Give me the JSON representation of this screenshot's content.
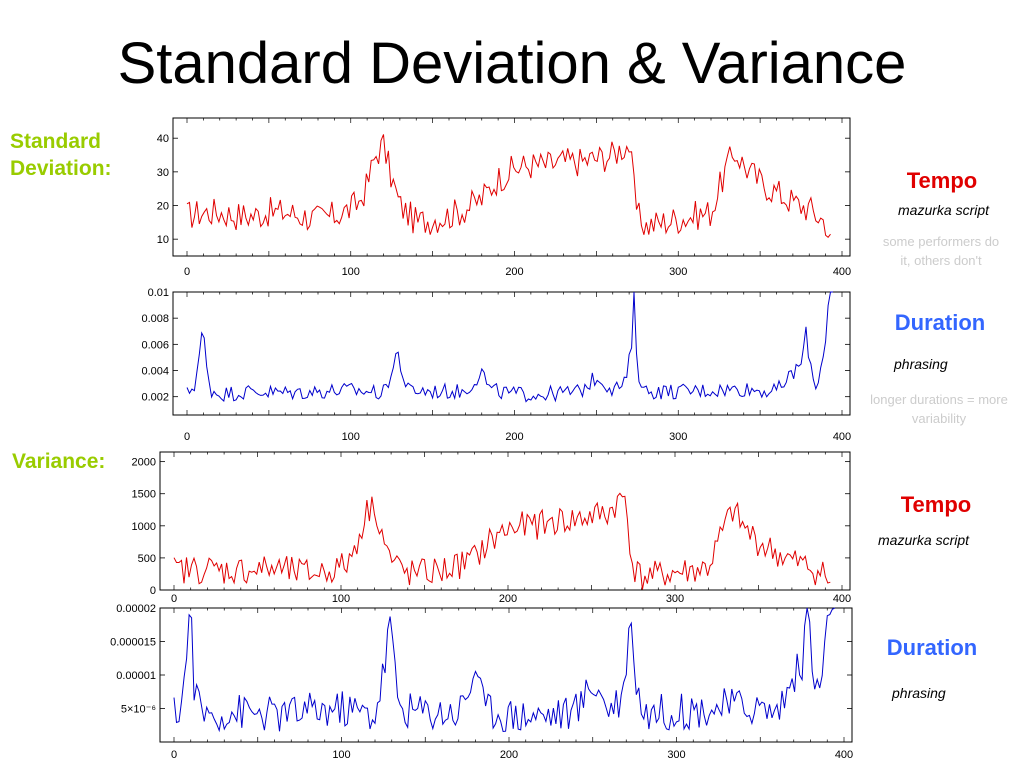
{
  "title": "Standard Deviation & Variance",
  "labels": {
    "std": "Standard\nDeviation:",
    "var": "Variance:"
  },
  "colors": {
    "tempo": "#e00000",
    "duration": "#0000cc",
    "section_label": "#99cc00",
    "note": "#cccccc"
  },
  "annotations": [
    {
      "title": "Tempo",
      "subtitle": "mazurka script",
      "note": "some performers do it, others don't"
    },
    {
      "title": "Duration",
      "subtitle": "phrasing",
      "note": "longer durations = more variability"
    },
    {
      "title": "Tempo",
      "subtitle": "mazurka script",
      "note": ""
    },
    {
      "title": "Duration",
      "subtitle": "phrasing",
      "note": ""
    }
  ],
  "chart_data": [
    {
      "type": "line",
      "title": "",
      "xlabel": "",
      "ylabel": "",
      "grid": false,
      "xlim": [
        0,
        400
      ],
      "ylim": [
        5,
        46
      ],
      "x_ticks": [
        0,
        100,
        200,
        300,
        400
      ],
      "y_ticks": [
        10,
        20,
        30,
        40
      ],
      "y_tick_labels": [
        "10",
        "20",
        "30",
        "40"
      ],
      "series": [
        {
          "color": "#e00000",
          "x": [
            0,
            10,
            20,
            30,
            40,
            50,
            60,
            70,
            80,
            90,
            100,
            105,
            110,
            115,
            120,
            125,
            130,
            140,
            150,
            160,
            170,
            180,
            190,
            200,
            210,
            220,
            230,
            240,
            250,
            260,
            265,
            270,
            275,
            280,
            290,
            300,
            310,
            320,
            330,
            335,
            340,
            350,
            360,
            370,
            380,
            390,
            393
          ],
          "y": [
            17,
            18,
            18,
            17,
            17,
            18,
            18,
            17,
            16,
            17,
            19,
            21,
            26,
            35,
            38,
            28,
            20,
            15,
            16,
            17,
            19,
            22,
            28,
            31,
            32,
            32,
            33,
            33,
            34,
            35,
            37,
            38,
            17,
            14,
            15,
            16,
            17,
            18,
            32,
            36,
            32,
            27,
            24,
            21,
            19,
            15,
            9
          ],
          "noise": 4.5
        }
      ]
    },
    {
      "type": "line",
      "title": "",
      "xlabel": "",
      "ylabel": "",
      "grid": false,
      "xlim": [
        0,
        400
      ],
      "ylim": [
        0.0006,
        0.01
      ],
      "x_ticks": [
        0,
        100,
        200,
        300,
        400
      ],
      "y_ticks": [
        0.002,
        0.004,
        0.006,
        0.008,
        0.01
      ],
      "y_tick_labels": [
        "0.002",
        "0.004",
        "0.006",
        "0.008",
        "0.01"
      ],
      "series": [
        {
          "color": "#0000cc",
          "x": [
            0,
            5,
            9,
            10,
            12,
            15,
            20,
            40,
            60,
            80,
            100,
            120,
            127,
            128,
            132,
            135,
            150,
            170,
            178,
            180,
            185,
            200,
            220,
            240,
            250,
            260,
            268,
            272,
            273,
            275,
            280,
            300,
            320,
            340,
            360,
            375,
            378,
            382,
            385,
            390,
            392,
            395
          ],
          "y": [
            0.0022,
            0.003,
            0.0065,
            0.0072,
            0.004,
            0.0025,
            0.0022,
            0.0024,
            0.0023,
            0.0024,
            0.0025,
            0.0023,
            0.0045,
            0.0058,
            0.0035,
            0.0025,
            0.0024,
            0.0024,
            0.0036,
            0.004,
            0.0025,
            0.0022,
            0.0022,
            0.0024,
            0.0035,
            0.0026,
            0.003,
            0.0065,
            0.0095,
            0.004,
            0.0024,
            0.0024,
            0.0025,
            0.0026,
            0.0024,
            0.0045,
            0.0068,
            0.0035,
            0.0028,
            0.0065,
            0.01,
            0.01
          ],
          "noise": 0.0006
        }
      ]
    },
    {
      "type": "line",
      "title": "",
      "xlabel": "",
      "ylabel": "",
      "grid": false,
      "xlim": [
        0,
        400
      ],
      "ylim": [
        0,
        2150
      ],
      "x_ticks": [
        0,
        100,
        200,
        300,
        400
      ],
      "y_ticks": [
        0,
        500,
        1000,
        1500,
        2000
      ],
      "y_tick_labels": [
        "0",
        "500",
        "1000",
        "1500",
        "2000"
      ],
      "series": [
        {
          "color": "#e00000",
          "x": [
            0,
            10,
            20,
            30,
            40,
            50,
            60,
            70,
            80,
            90,
            100,
            105,
            110,
            115,
            120,
            125,
            130,
            140,
            150,
            160,
            170,
            180,
            190,
            200,
            210,
            220,
            230,
            240,
            250,
            260,
            265,
            270,
            275,
            280,
            290,
            300,
            310,
            320,
            330,
            335,
            340,
            350,
            360,
            370,
            380,
            390,
            393
          ],
          "y": [
            300,
            320,
            330,
            300,
            310,
            320,
            330,
            290,
            260,
            290,
            360,
            450,
            800,
            1200,
            1350,
            850,
            450,
            250,
            270,
            300,
            380,
            500,
            780,
            950,
            1000,
            1020,
            1080,
            1090,
            1150,
            1200,
            1350,
            1450,
            330,
            200,
            230,
            270,
            300,
            350,
            1000,
            1250,
            1000,
            740,
            580,
            450,
            360,
            230,
            90
          ],
          "noise": 230
        }
      ]
    },
    {
      "type": "line",
      "title": "",
      "xlabel": "",
      "ylabel": "",
      "grid": false,
      "xlim": [
        0,
        400
      ],
      "ylim": [
        0,
        2e-05
      ],
      "x_ticks": [
        0,
        100,
        200,
        300,
        400
      ],
      "y_ticks": [
        5e-06,
        1e-05,
        1.5e-05,
        2e-05
      ],
      "y_tick_labels": [
        "5×10⁻⁶",
        "0.00001",
        "0.000015",
        "0.00002"
      ],
      "series": [
        {
          "color": "#0000cc",
          "x": [
            0,
            5,
            9,
            10,
            12,
            15,
            20,
            40,
            60,
            80,
            100,
            120,
            127,
            128,
            132,
            135,
            150,
            170,
            178,
            180,
            185,
            200,
            220,
            240,
            250,
            260,
            268,
            272,
            273,
            275,
            280,
            300,
            320,
            340,
            360,
            375,
            378,
            382,
            385,
            390,
            392,
            395
          ],
          "y": [
            4e-06,
            6e-06,
            1.8e-05,
            2e-05,
            9e-06,
            5e-06,
            4e-06,
            4.5e-06,
            4e-06,
            4.5e-06,
            5e-06,
            4e-06,
            1.3e-05,
            2e-05,
            1e-05,
            5e-06,
            4.5e-06,
            4.5e-06,
            9e-06,
            1.2e-05,
            5e-06,
            4e-06,
            4e-06,
            4.5e-06,
            9e-06,
            5e-06,
            7e-06,
            1.7e-05,
            2e-05,
            1e-05,
            4.5e-06,
            4.5e-06,
            5e-06,
            5.5e-06,
            4.5e-06,
            1.2e-05,
            2e-05,
            1e-05,
            6e-06,
            1.8e-05,
            2e-05,
            2e-05
          ],
          "noise": 2.8e-06
        }
      ]
    }
  ]
}
